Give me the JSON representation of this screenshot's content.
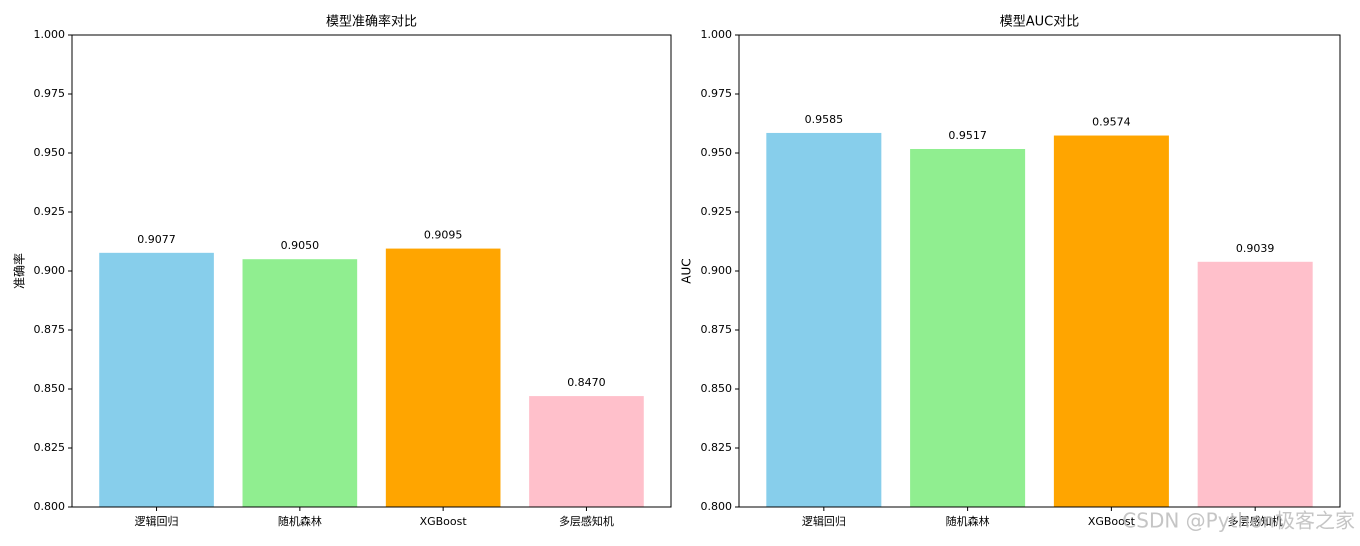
{
  "chart_data": [
    {
      "type": "bar",
      "title": "模型准确率对比",
      "ylabel": "准确率",
      "categories": [
        "逻辑回归",
        "随机森林",
        "XGBoost",
        "多层感知机"
      ],
      "values": [
        0.9077,
        0.905,
        0.9095,
        0.847
      ],
      "value_labels": [
        "0.9077",
        "0.9050",
        "0.9095",
        "0.8470"
      ],
      "colors": [
        "#87ceeb",
        "#90ee90",
        "#ffa500",
        "#ffc0cb"
      ],
      "ylim": [
        0.8,
        1.0
      ],
      "yticks": [
        {
          "value": 0.8,
          "label": "0.800"
        },
        {
          "value": 0.825,
          "label": "0.825"
        },
        {
          "value": 0.85,
          "label": "0.850"
        },
        {
          "value": 0.875,
          "label": "0.875"
        },
        {
          "value": 0.9,
          "label": "0.900"
        },
        {
          "value": 0.925,
          "label": "0.925"
        },
        {
          "value": 0.95,
          "label": "0.950"
        },
        {
          "value": 0.975,
          "label": "0.975"
        },
        {
          "value": 1.0,
          "label": "1.000"
        }
      ]
    },
    {
      "type": "bar",
      "title": "模型AUC对比",
      "ylabel": "AUC",
      "categories": [
        "逻辑回归",
        "随机森林",
        "XGBoost",
        "多层感知机"
      ],
      "values": [
        0.9585,
        0.9517,
        0.9574,
        0.9039
      ],
      "value_labels": [
        "0.9585",
        "0.9517",
        "0.9574",
        "0.9039"
      ],
      "colors": [
        "#87ceeb",
        "#90ee90",
        "#ffa500",
        "#ffc0cb"
      ],
      "ylim": [
        0.8,
        1.0
      ],
      "yticks": [
        {
          "value": 0.8,
          "label": "0.800"
        },
        {
          "value": 0.825,
          "label": "0.825"
        },
        {
          "value": 0.85,
          "label": "0.850"
        },
        {
          "value": 0.875,
          "label": "0.875"
        },
        {
          "value": 0.9,
          "label": "0.900"
        },
        {
          "value": 0.925,
          "label": "0.925"
        },
        {
          "value": 0.95,
          "label": "0.950"
        },
        {
          "value": 0.975,
          "label": "0.975"
        },
        {
          "value": 1.0,
          "label": "1.000"
        }
      ]
    }
  ],
  "watermark": "CSDN @Python极客之家"
}
